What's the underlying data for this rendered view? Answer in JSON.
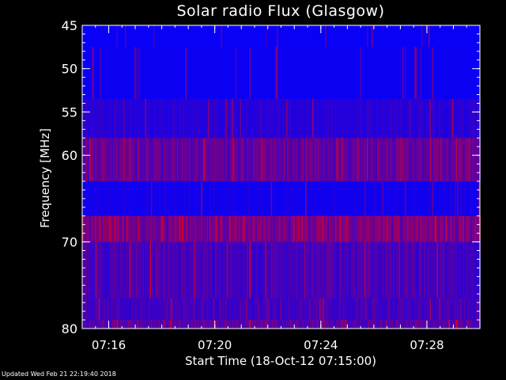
{
  "chart_data": {
    "type": "heatmap",
    "title": "Solar radio Flux (Glasgow)",
    "xlabel": "Start Time (18-Oct-12 07:15:00)",
    "ylabel": "Frequency [MHz]",
    "x_range_minutes": [
      0,
      15
    ],
    "x_ticks": [
      {
        "minute": 1,
        "label": "07:16"
      },
      {
        "minute": 5,
        "label": "07:20"
      },
      {
        "minute": 9,
        "label": "07:24"
      },
      {
        "minute": 13,
        "label": "07:28"
      }
    ],
    "y_range": [
      45,
      80
    ],
    "y_reversed": true,
    "y_ticks": [
      45,
      50,
      55,
      60,
      70,
      80
    ],
    "colormap": [
      "#0000ff",
      "#ff0000"
    ],
    "frequency_bands": [
      {
        "from": 45,
        "to": 47.5,
        "intensity": 0.06
      },
      {
        "from": 47.5,
        "to": 53.5,
        "intensity": 0.08
      },
      {
        "from": 53.5,
        "to": 58,
        "intensity": 0.18
      },
      {
        "from": 58,
        "to": 63,
        "intensity": 0.45
      },
      {
        "from": 63,
        "to": 67,
        "intensity": 0.1
      },
      {
        "from": 67,
        "to": 70,
        "intensity": 0.55
      },
      {
        "from": 70,
        "to": 76.5,
        "intensity": 0.32
      },
      {
        "from": 76.5,
        "to": 79,
        "intensity": 0.3
      },
      {
        "from": 79,
        "to": 80,
        "intensity": 0.4
      }
    ]
  },
  "footer": {
    "updated": "Updated Wed Feb 21 22:19:40 2018"
  },
  "colors": {
    "low": "#0000ff",
    "high": "#ff0000",
    "background": "#000000",
    "text": "#ffffff"
  }
}
